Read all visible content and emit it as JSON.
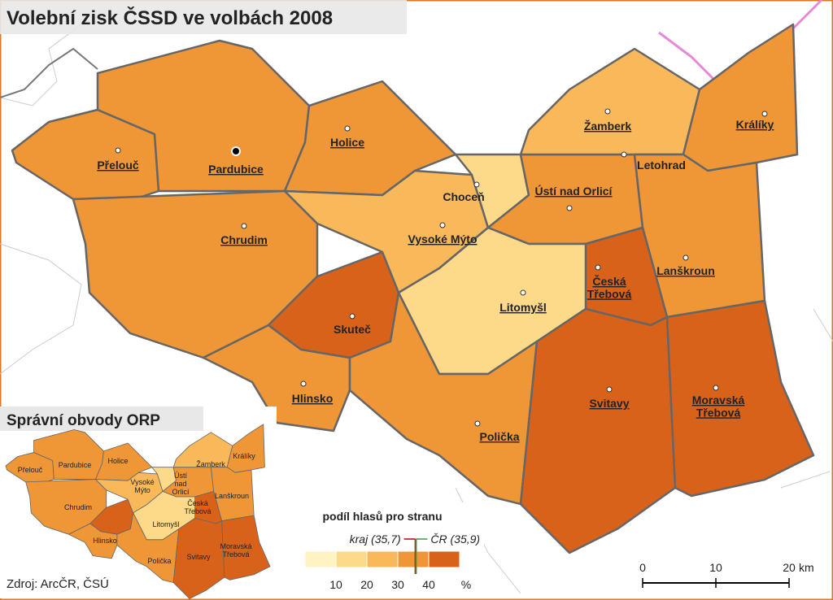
{
  "title": "Volební zisk ČSSD ve volbách 2008",
  "map": {
    "towns": [
      "Přelouč",
      "Pardubice",
      "Holice",
      "Chrudim",
      "Vysoké Mýto",
      "Choceň",
      "Ústí nad Orlicí",
      "Žamberk",
      "Letohrad",
      "Králíky",
      "Lanškroun",
      "Česká Třebová",
      "Litomyšl",
      "Skuteč",
      "Hlinsko",
      "Svitavy",
      "Moravská Třebová",
      "Polička"
    ]
  },
  "inset": {
    "title": "Správní obvody ORP",
    "labels": [
      "Přelouč",
      "Pardubice",
      "Holice",
      "Vysoké Mýto",
      "Ústí nad Orlicí",
      "Žamberk",
      "Králíky",
      "Lanškroun",
      "Česká Třebová",
      "Chrudim",
      "Litomyšl",
      "Hlinsko",
      "Polička",
      "Svitavy",
      "Moravská Třebová"
    ]
  },
  "legend": {
    "title": "podíl hlasů pro stranu",
    "lim": [
      0,
      50
    ],
    "ticks": [
      10,
      20,
      30,
      40
    ],
    "unit": "%",
    "colors": [
      "#fff3c4",
      "#fdd98a",
      "#f9b85a",
      "#ef9637",
      "#d9621a"
    ],
    "markers": [
      {
        "label": "kraj (35,7)",
        "value": 35.7,
        "color": "#c00000"
      },
      {
        "label": "ČR (35,9)",
        "value": 35.9,
        "color": "#3a9a3a"
      }
    ]
  },
  "scale": {
    "lim": [
      0,
      20
    ],
    "ticks": [
      0,
      10,
      20
    ],
    "unit": "km"
  },
  "source": "Zdroj: ArcČR, ČSÚ"
}
